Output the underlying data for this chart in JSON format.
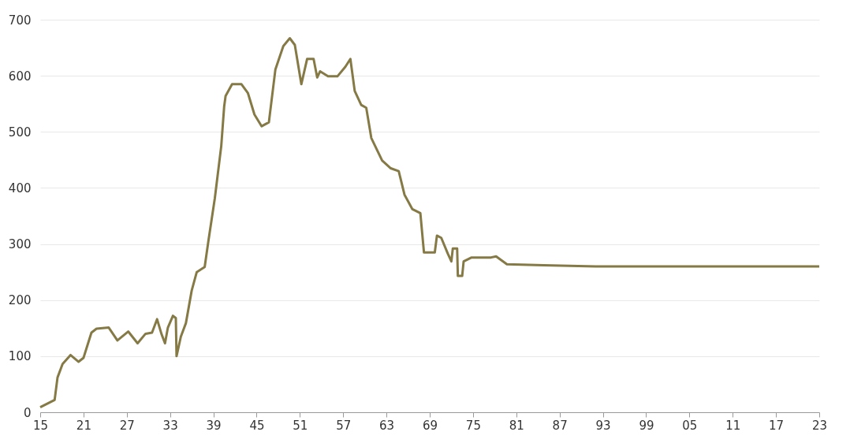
{
  "chart_data": {
    "type": "line",
    "xlim": [
      1915,
      2023
    ],
    "ylim": [
      0,
      700
    ],
    "yticks": [
      0,
      100,
      200,
      300,
      400,
      500,
      600,
      700
    ],
    "xticks": [
      {
        "value": 1915,
        "label": "15"
      },
      {
        "value": 1921,
        "label": "21"
      },
      {
        "value": 1927,
        "label": "27"
      },
      {
        "value": 1933,
        "label": "33"
      },
      {
        "value": 1939,
        "label": "39"
      },
      {
        "value": 1945,
        "label": "45"
      },
      {
        "value": 1951,
        "label": "51"
      },
      {
        "value": 1957,
        "label": "57"
      },
      {
        "value": 1963,
        "label": "63"
      },
      {
        "value": 1969,
        "label": "69"
      },
      {
        "value": 1975,
        "label": "75"
      },
      {
        "value": 1981,
        "label": "81"
      },
      {
        "value": 1987,
        "label": "87"
      },
      {
        "value": 1993,
        "label": "93"
      },
      {
        "value": 1999,
        "label": "99"
      },
      {
        "value": 2005,
        "label": "05"
      },
      {
        "value": 2011,
        "label": "11"
      },
      {
        "value": 2017,
        "label": "17"
      },
      {
        "value": 2023,
        "label": "23"
      }
    ],
    "grid": "y",
    "marker": "none",
    "line_style": "solid",
    "series": [
      {
        "color": "#857a45",
        "x": [
          1915,
          1917,
          1917.4,
          1918.1,
          1919.2,
          1920.3,
          1921,
          1922.1,
          1922.8,
          1924.5,
          1925.7,
          1927.2,
          1928.5,
          1929.6,
          1930.5,
          1931.2,
          1931.8,
          1932.3,
          1932.7,
          1933.4,
          1933.8,
          1933.9,
          1934.5,
          1935.2,
          1936,
          1936.7,
          1937.8,
          1938.3,
          1939.2,
          1940.1,
          1940.5,
          1940.7,
          1941.6,
          1942.9,
          1943.8,
          1944.7,
          1945.7,
          1946.7,
          1947.6,
          1948.7,
          1949.6,
          1950.3,
          1951.2,
          1952,
          1952.9,
          1953.4,
          1953.8,
          1954.9,
          1956.2,
          1957.3,
          1958,
          1958.6,
          1959.5,
          1960.2,
          1960.9,
          1962.4,
          1963.6,
          1964.7,
          1965.5,
          1966.6,
          1967.7,
          1968.2,
          1969.7,
          1970,
          1970.6,
          1971.5,
          1972,
          1972.2,
          1972.8,
          1972.9,
          1973.5,
          1973.7,
          1974.8,
          1977.5,
          1978.2,
          1979.7,
          1984.8,
          1992,
          2023
        ],
        "values": [
          9,
          22,
          62,
          86,
          102,
          90,
          97,
          142,
          149,
          151,
          128,
          144,
          123,
          140,
          142,
          166,
          140,
          123,
          151,
          172,
          168,
          100,
          135,
          159,
          217,
          250,
          259,
          304,
          381,
          475,
          545,
          564,
          585,
          585,
          569,
          531,
          510,
          517,
          611,
          653,
          667,
          655,
          585,
          630,
          630,
          597,
          608,
          599,
          599,
          616,
          630,
          573,
          548,
          543,
          489,
          449,
          435,
          430,
          388,
          362,
          355,
          285,
          285,
          315,
          311,
          283,
          269,
          292,
          292,
          243,
          243,
          269,
          276,
          276,
          278,
          264,
          262,
          260,
          260
        ]
      }
    ]
  }
}
